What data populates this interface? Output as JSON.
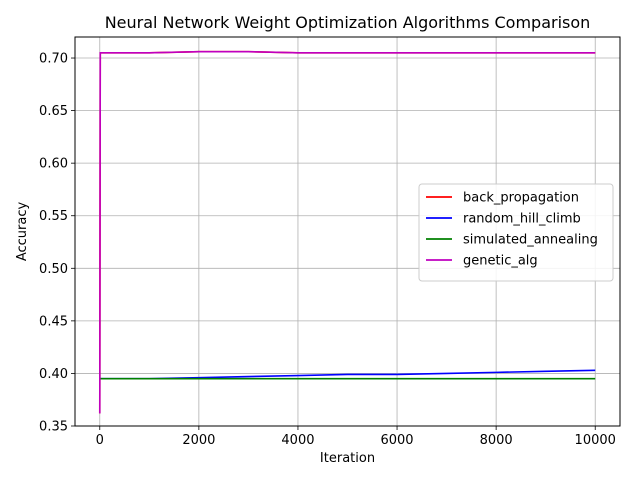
{
  "chart_data": {
    "type": "line",
    "title": "Neural Network Weight Optimization Algorithms Comparison",
    "xlabel": "Iteration",
    "ylabel": "Accuracy",
    "xlim": [
      -500,
      10500
    ],
    "ylim": [
      0.35,
      0.72
    ],
    "xticks": [
      0,
      2000,
      4000,
      6000,
      8000,
      10000
    ],
    "xtick_labels": [
      "0",
      "2000",
      "4000",
      "6000",
      "8000",
      "10000"
    ],
    "yticks": [
      0.35,
      0.4,
      0.45,
      0.5,
      0.55,
      0.6,
      0.65,
      0.7
    ],
    "ytick_labels": [
      "0.35",
      "0.40",
      "0.45",
      "0.50",
      "0.55",
      "0.60",
      "0.65",
      "0.70"
    ],
    "grid": true,
    "legend_position": "center-right",
    "series": [
      {
        "name": "back_propagation",
        "color": "#ff0000",
        "x": [
          0,
          10,
          20,
          1000,
          2000,
          3000,
          4000,
          5000,
          6000,
          7000,
          8000,
          9000,
          10000
        ],
        "y": [
          0.362,
          0.705,
          0.705,
          0.705,
          0.706,
          0.706,
          0.705,
          0.705,
          0.705,
          0.705,
          0.705,
          0.705,
          0.705
        ]
      },
      {
        "name": "random_hill_climb",
        "color": "#0000ff",
        "x": [
          0,
          1000,
          2000,
          3000,
          4000,
          5000,
          6000,
          7000,
          8000,
          9000,
          10000
        ],
        "y": [
          0.395,
          0.395,
          0.396,
          0.397,
          0.398,
          0.399,
          0.399,
          0.4,
          0.401,
          0.402,
          0.403
        ]
      },
      {
        "name": "simulated_annealing",
        "color": "#008000",
        "x": [
          0,
          1000,
          2000,
          3000,
          4000,
          5000,
          6000,
          7000,
          8000,
          9000,
          10000
        ],
        "y": [
          0.395,
          0.395,
          0.395,
          0.395,
          0.395,
          0.395,
          0.395,
          0.395,
          0.395,
          0.395,
          0.395
        ]
      },
      {
        "name": "genetic_alg",
        "color": "#bf00bf",
        "x": [
          0,
          10,
          20,
          1000,
          2000,
          3000,
          4000,
          5000,
          6000,
          7000,
          8000,
          9000,
          10000
        ],
        "y": [
          0.362,
          0.705,
          0.705,
          0.705,
          0.706,
          0.706,
          0.705,
          0.705,
          0.705,
          0.705,
          0.705,
          0.705,
          0.705
        ]
      }
    ]
  }
}
